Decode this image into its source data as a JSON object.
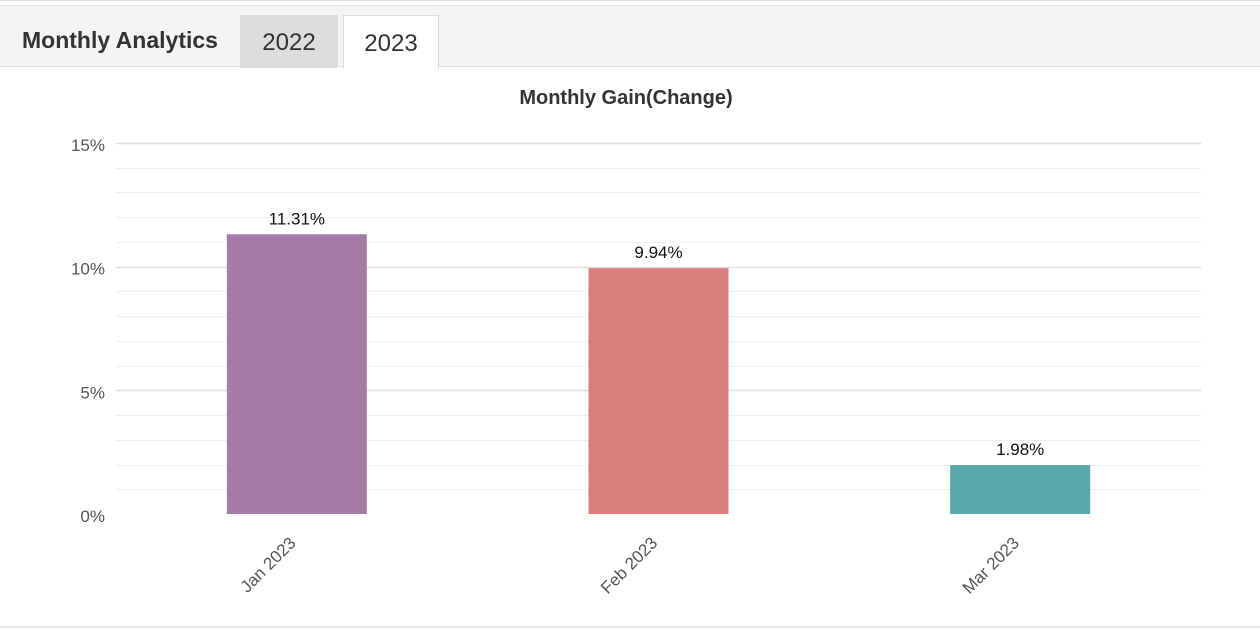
{
  "header": {
    "title": "Monthly Analytics",
    "tabs": [
      {
        "label": "2022",
        "active": false
      },
      {
        "label": "2023",
        "active": true
      }
    ]
  },
  "colors": {
    "tab_inactive_bg": "#dddddd",
    "tab_active_bg": "#ffffff",
    "grid_major": "#e0e0e0",
    "grid_minor": "#efefef"
  },
  "chart_data": {
    "type": "bar",
    "title": "Monthly Gain(Change)",
    "xlabel": "",
    "ylabel": "",
    "categories": [
      "Jan 2023",
      "Feb 2023",
      "Mar 2023"
    ],
    "values": [
      11.31,
      9.94,
      1.98
    ],
    "data_labels": [
      "11.31%",
      "9.94%",
      "1.98%"
    ],
    "bar_colors": [
      "#a57ca9",
      "#d97e79",
      "#5aa7ab"
    ],
    "ylim": [
      0,
      15
    ],
    "yticks": [
      0,
      5,
      10,
      15
    ],
    "ytick_labels": [
      "0%",
      "5%",
      "10%",
      "15%"
    ],
    "grid": true,
    "legend": false
  }
}
